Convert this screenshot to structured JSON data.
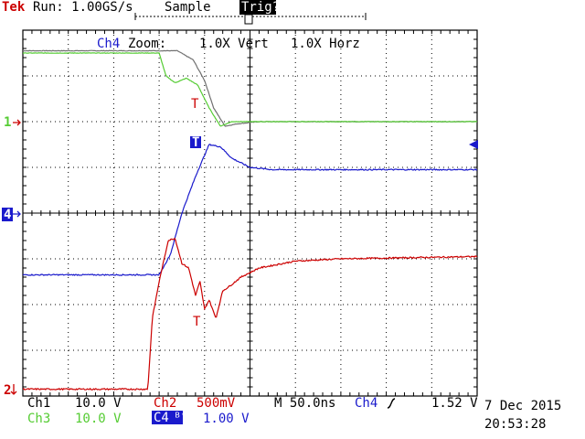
{
  "header": {
    "brand": "Tek",
    "status": "Run: 1.00GS/s",
    "mode": "Sample",
    "trigger_status": "Trig?"
  },
  "zoom": {
    "channel": "Ch4",
    "text": "Zoom:",
    "vert": "1.0X Vert",
    "horz": "1.0X Horz"
  },
  "markers": {
    "ch1": "1",
    "ch4": "4",
    "ch2": "2",
    "trigger_t": "T"
  },
  "footer": {
    "ch1_label": "Ch1",
    "ch1_scale": "10.0 V",
    "ch2_label": "Ch2",
    "ch2_scale": "500mV",
    "ch3_label": "Ch3",
    "ch3_scale": "10.0 V",
    "ch4_label": "C4",
    "ch4_scale": "1.00 V",
    "timebase": "M 50.0ns",
    "trig_source": "Ch4",
    "trig_level": "1.52 V",
    "date": "7 Dec 2015",
    "time": "20:53:28"
  },
  "colors": {
    "ch1": "#707070",
    "ch2": "#cc0000",
    "ch3": "#55cc33",
    "ch4": "#1a1acc",
    "grid": "#000000"
  },
  "chart_data": {
    "type": "line",
    "x_units": "time divisions",
    "y_units": "vertical divisions",
    "xlim": [
      0,
      10
    ],
    "ylim": [
      -4,
      4
    ],
    "grid": true,
    "series": [
      {
        "name": "Ch1",
        "points": [
          [
            0,
            3.55
          ],
          [
            3.4,
            3.55
          ],
          [
            3.75,
            3.35
          ],
          [
            4.0,
            2.9
          ],
          [
            4.2,
            2.3
          ],
          [
            4.45,
            1.9
          ],
          [
            4.7,
            1.95
          ],
          [
            5.2,
            2.0
          ],
          [
            10,
            2.0
          ]
        ]
      },
      {
        "name": "Ch3",
        "points": [
          [
            0,
            3.5
          ],
          [
            3.0,
            3.5
          ],
          [
            3.15,
            3.0
          ],
          [
            3.35,
            2.85
          ],
          [
            3.6,
            2.95
          ],
          [
            3.85,
            2.8
          ],
          [
            4.1,
            2.3
          ],
          [
            4.35,
            1.9
          ],
          [
            4.6,
            2.0
          ],
          [
            10,
            2.0
          ]
        ]
      },
      {
        "name": "Ch4",
        "points": [
          [
            0,
            -1.35
          ],
          [
            3.0,
            -1.35
          ],
          [
            3.25,
            -0.9
          ],
          [
            3.5,
            0
          ],
          [
            3.8,
            0.8
          ],
          [
            4.1,
            1.5
          ],
          [
            4.35,
            1.45
          ],
          [
            4.6,
            1.2
          ],
          [
            5.0,
            1.0
          ],
          [
            5.5,
            0.95
          ],
          [
            10,
            0.95
          ]
        ]
      },
      {
        "name": "Ch2",
        "points": [
          [
            0,
            -3.85
          ],
          [
            2.75,
            -3.85
          ],
          [
            2.85,
            -2.3
          ],
          [
            3.0,
            -1.5
          ],
          [
            3.2,
            -0.6
          ],
          [
            3.35,
            -0.55
          ],
          [
            3.5,
            -1.1
          ],
          [
            3.65,
            -1.2
          ],
          [
            3.8,
            -1.8
          ],
          [
            3.9,
            -1.5
          ],
          [
            4.0,
            -2.1
          ],
          [
            4.1,
            -1.9
          ],
          [
            4.25,
            -2.3
          ],
          [
            4.4,
            -1.7
          ],
          [
            4.55,
            -1.6
          ],
          [
            4.8,
            -1.4
          ],
          [
            5.2,
            -1.2
          ],
          [
            6.0,
            -1.05
          ],
          [
            7.0,
            -1.0
          ],
          [
            10,
            -0.95
          ]
        ]
      }
    ]
  }
}
